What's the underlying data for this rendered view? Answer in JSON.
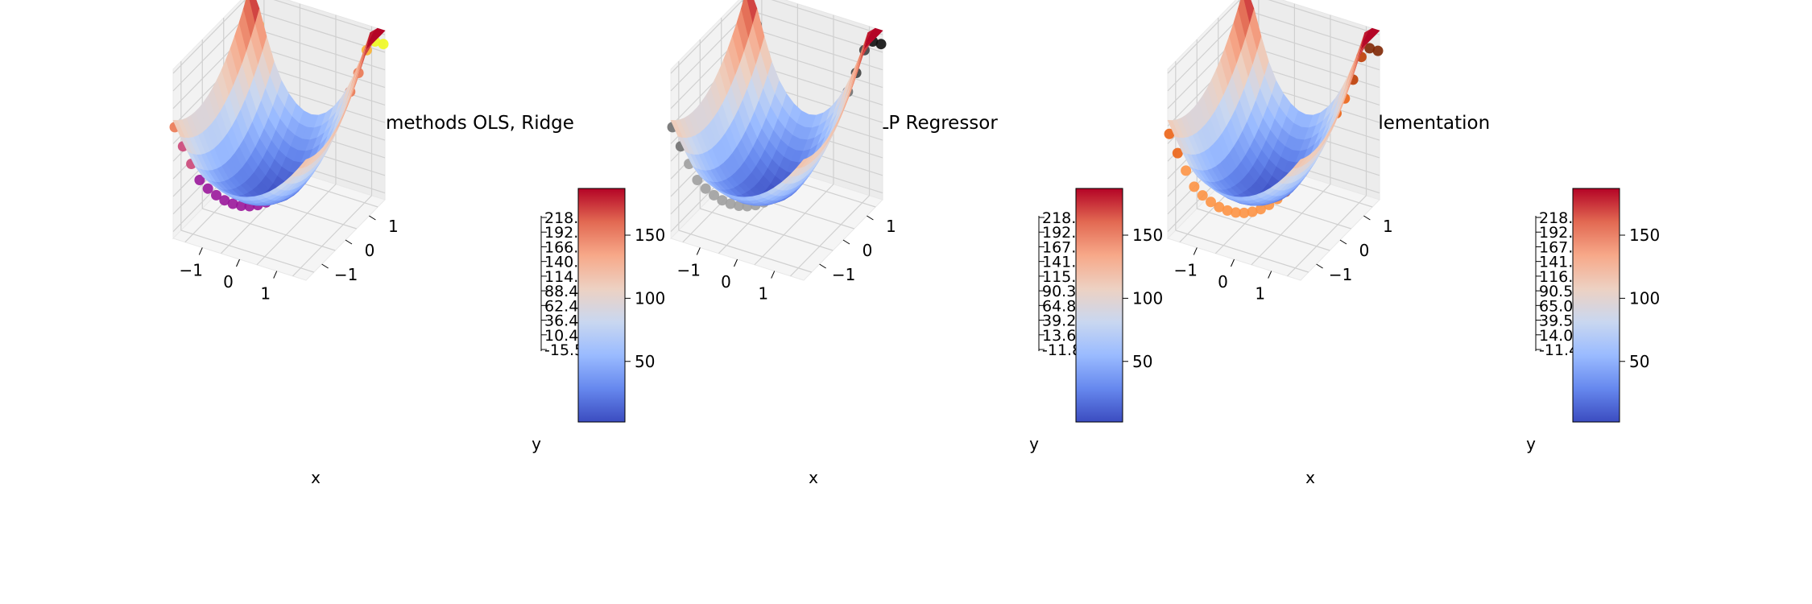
{
  "chart_data": [
    {
      "type": "surface3d",
      "title": "Linear Regression methods OLS, Ridge",
      "xlabel": "x",
      "ylabel": "y",
      "x_ticks": [
        "−1",
        "0",
        "1"
      ],
      "y_ticks": [
        "−1",
        "0",
        "1"
      ],
      "z_ticks": [
        "-15.5",
        "10.4",
        "36.4",
        "62.4",
        "88.4",
        "114.",
        "140.",
        "166.",
        "192.",
        "218."
      ],
      "zlim": [
        -15.5,
        218
      ],
      "colorbar_ticks": [
        "50",
        "100",
        "150"
      ],
      "colorbar_range": [
        2,
        187
      ],
      "surface": "predicted",
      "scatter_cmap": "plasma",
      "scatter_colors": [
        "#0d0887",
        "#5b02a3",
        "#9a179b",
        "#cb4678",
        "#eb7852",
        "#fbb32f",
        "#f0f921"
      ]
    },
    {
      "type": "surface3d",
      "title": "Sklearn MLP Regressor",
      "xlabel": "x",
      "ylabel": "y",
      "x_ticks": [
        "−1",
        "0",
        "1"
      ],
      "y_ticks": [
        "−1",
        "0",
        "1"
      ],
      "z_ticks": [
        "-11.8",
        "13.6",
        "39.2",
        "64.8",
        "90.3",
        "115.",
        "141.",
        "167.",
        "192.",
        "218."
      ],
      "zlim": [
        -11.8,
        218
      ],
      "colorbar_ticks": [
        "50",
        "100",
        "150"
      ],
      "colorbar_range": [
        2,
        187
      ],
      "surface": "predicted",
      "scatter_cmap": "greys",
      "scatter_colors": [
        "#f0f0f0",
        "#cfcfcf",
        "#a0a0a0",
        "#707070",
        "#404040",
        "#101010"
      ]
    },
    {
      "type": "surface3d",
      "title": "FFNN implementation",
      "xlabel": "x",
      "ylabel": "y",
      "x_ticks": [
        "−1",
        "0",
        "1"
      ],
      "y_ticks": [
        "−1",
        "0",
        "1"
      ],
      "z_ticks": [
        "-11.4",
        "14.0",
        "39.5",
        "65.0",
        "90.5",
        "116.",
        "141.",
        "167.",
        "192.",
        "218."
      ],
      "zlim": [
        -11.4,
        218
      ],
      "colorbar_ticks": [
        "50",
        "100",
        "150"
      ],
      "colorbar_range": [
        2,
        187
      ],
      "surface": "predicted",
      "scatter_cmap": "oranges",
      "scatter_colors": [
        "#fee6ce",
        "#fdc08a",
        "#fd9445",
        "#ec6416",
        "#bf3d04",
        "#7f2704"
      ]
    }
  ],
  "colormap": [
    "#3b4cc0",
    "#6688ee",
    "#9abbff",
    "#c9d7f0",
    "#edd1c2",
    "#f7a889",
    "#e26952",
    "#b40426"
  ]
}
